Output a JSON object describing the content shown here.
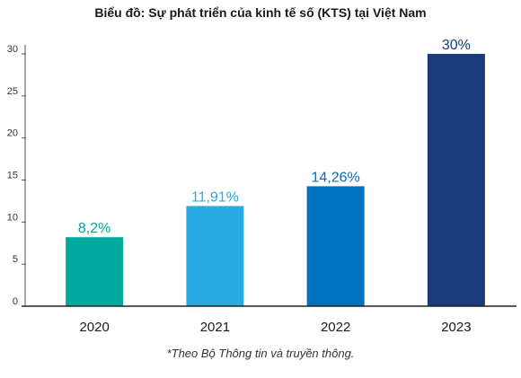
{
  "chart_data": {
    "type": "bar",
    "title": "Biểu đồ: Sự phát triển của kinh tế số (KTS) tại Việt Nam",
    "categories": [
      "2020",
      "2021",
      "2022",
      "2023"
    ],
    "values": [
      8.2,
      11.91,
      14.26,
      30
    ],
    "data_labels": [
      "8,2%",
      "11,91%",
      "14,26%",
      "30%"
    ],
    "bar_colors": [
      "#00A99D",
      "#29ABE2",
      "#0071BC",
      "#1B3A7A"
    ],
    "label_colors": [
      "#00A99D",
      "#29ABE2",
      "#0071BC",
      "#1B3A7A"
    ],
    "yticks": [
      "0",
      "5",
      "10",
      "15",
      "20",
      "25",
      "30"
    ],
    "ylim": [
      0,
      30
    ],
    "xlabel": "",
    "ylabel": "",
    "grid": false,
    "footnote": "*Theo Bộ Thông tin và truyền thông."
  }
}
